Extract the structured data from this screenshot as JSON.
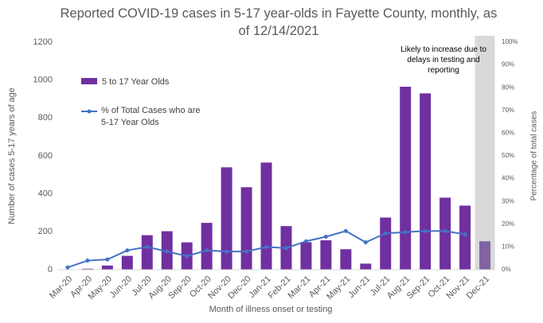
{
  "chart_data": {
    "type": "bar_line",
    "title": "Reported COVID-19 cases in 5-17 year-olds in Fayette County, monthly, as of 12/14/2021",
    "x_label": "Month of illness onset or testing",
    "y_label": "Number of cases 5-17 years of age",
    "y2_label": "Percentage of total cases",
    "categories": [
      "Mar-20",
      "Apr-20",
      "May-20",
      "Jun-20",
      "Jul-20",
      "Aug-20",
      "Sep-20",
      "Oct-20",
      "Nov-20",
      "Dec-20",
      "Jan-21",
      "Feb-21",
      "Mar-21",
      "Apr-21",
      "May-21",
      "Jun-21",
      "Jul-21",
      "Aug-21",
      "Sep-21",
      "Oct-21",
      "Nov-21",
      "Dec-21"
    ],
    "series": [
      {
        "name": "5 to 17 Year Olds",
        "type": "bar",
        "color": "#7030a0",
        "point_colors": [
          "#7030a0",
          "#7030a0",
          "#7030a0",
          "#7030a0",
          "#7030a0",
          "#7030a0",
          "#7030a0",
          "#7030a0",
          "#7030a0",
          "#7030a0",
          "#7030a0",
          "#7030a0",
          "#7030a0",
          "#7030a0",
          "#7030a0",
          "#7030a0",
          "#7030a0",
          "#7030a0",
          "#7030a0",
          "#7030a0",
          "#7030a0",
          "#8064a2"
        ],
        "values": [
          2,
          5,
          22,
          73,
          182,
          203,
          144,
          247,
          540,
          435,
          565,
          230,
          145,
          155,
          108,
          32,
          275,
          965,
          930,
          380,
          338,
          150
        ]
      },
      {
        "name": "% of Total Cases who are 5-17 Year Olds",
        "type": "line",
        "axis": "y2",
        "color": "#4472c4",
        "values": [
          1,
          4,
          4.5,
          8.5,
          10,
          8,
          6,
          8.5,
          8,
          8,
          10,
          9.5,
          12.5,
          14.5,
          17,
          12,
          16,
          16.5,
          17,
          17,
          15.5,
          null
        ]
      }
    ],
    "ylim": [
      0,
      1200
    ],
    "yticks": [
      0,
      200,
      400,
      600,
      800,
      1000,
      1200
    ],
    "y2lim": [
      0,
      100
    ],
    "y2ticks": [
      {
        "value": 0,
        "label": "0%"
      },
      {
        "value": 10,
        "label": "10%"
      },
      {
        "value": 20,
        "label": "20%"
      },
      {
        "value": 30,
        "label": "30%"
      },
      {
        "value": 40,
        "label": "40%"
      },
      {
        "value": 50,
        "label": "50%"
      },
      {
        "value": 60,
        "label": "60%"
      },
      {
        "value": 70,
        "label": "70%"
      },
      {
        "value": 80,
        "label": "80%"
      },
      {
        "value": 90,
        "label": "90%"
      },
      {
        "value": 100,
        "label": "100%"
      }
    ],
    "grid": false,
    "legend": "upper left",
    "annotations": [
      {
        "text": "Likely to increase due to delays in testing and reporting",
        "x": "Dec-21",
        "shade": "#d9d9d9"
      }
    ]
  }
}
